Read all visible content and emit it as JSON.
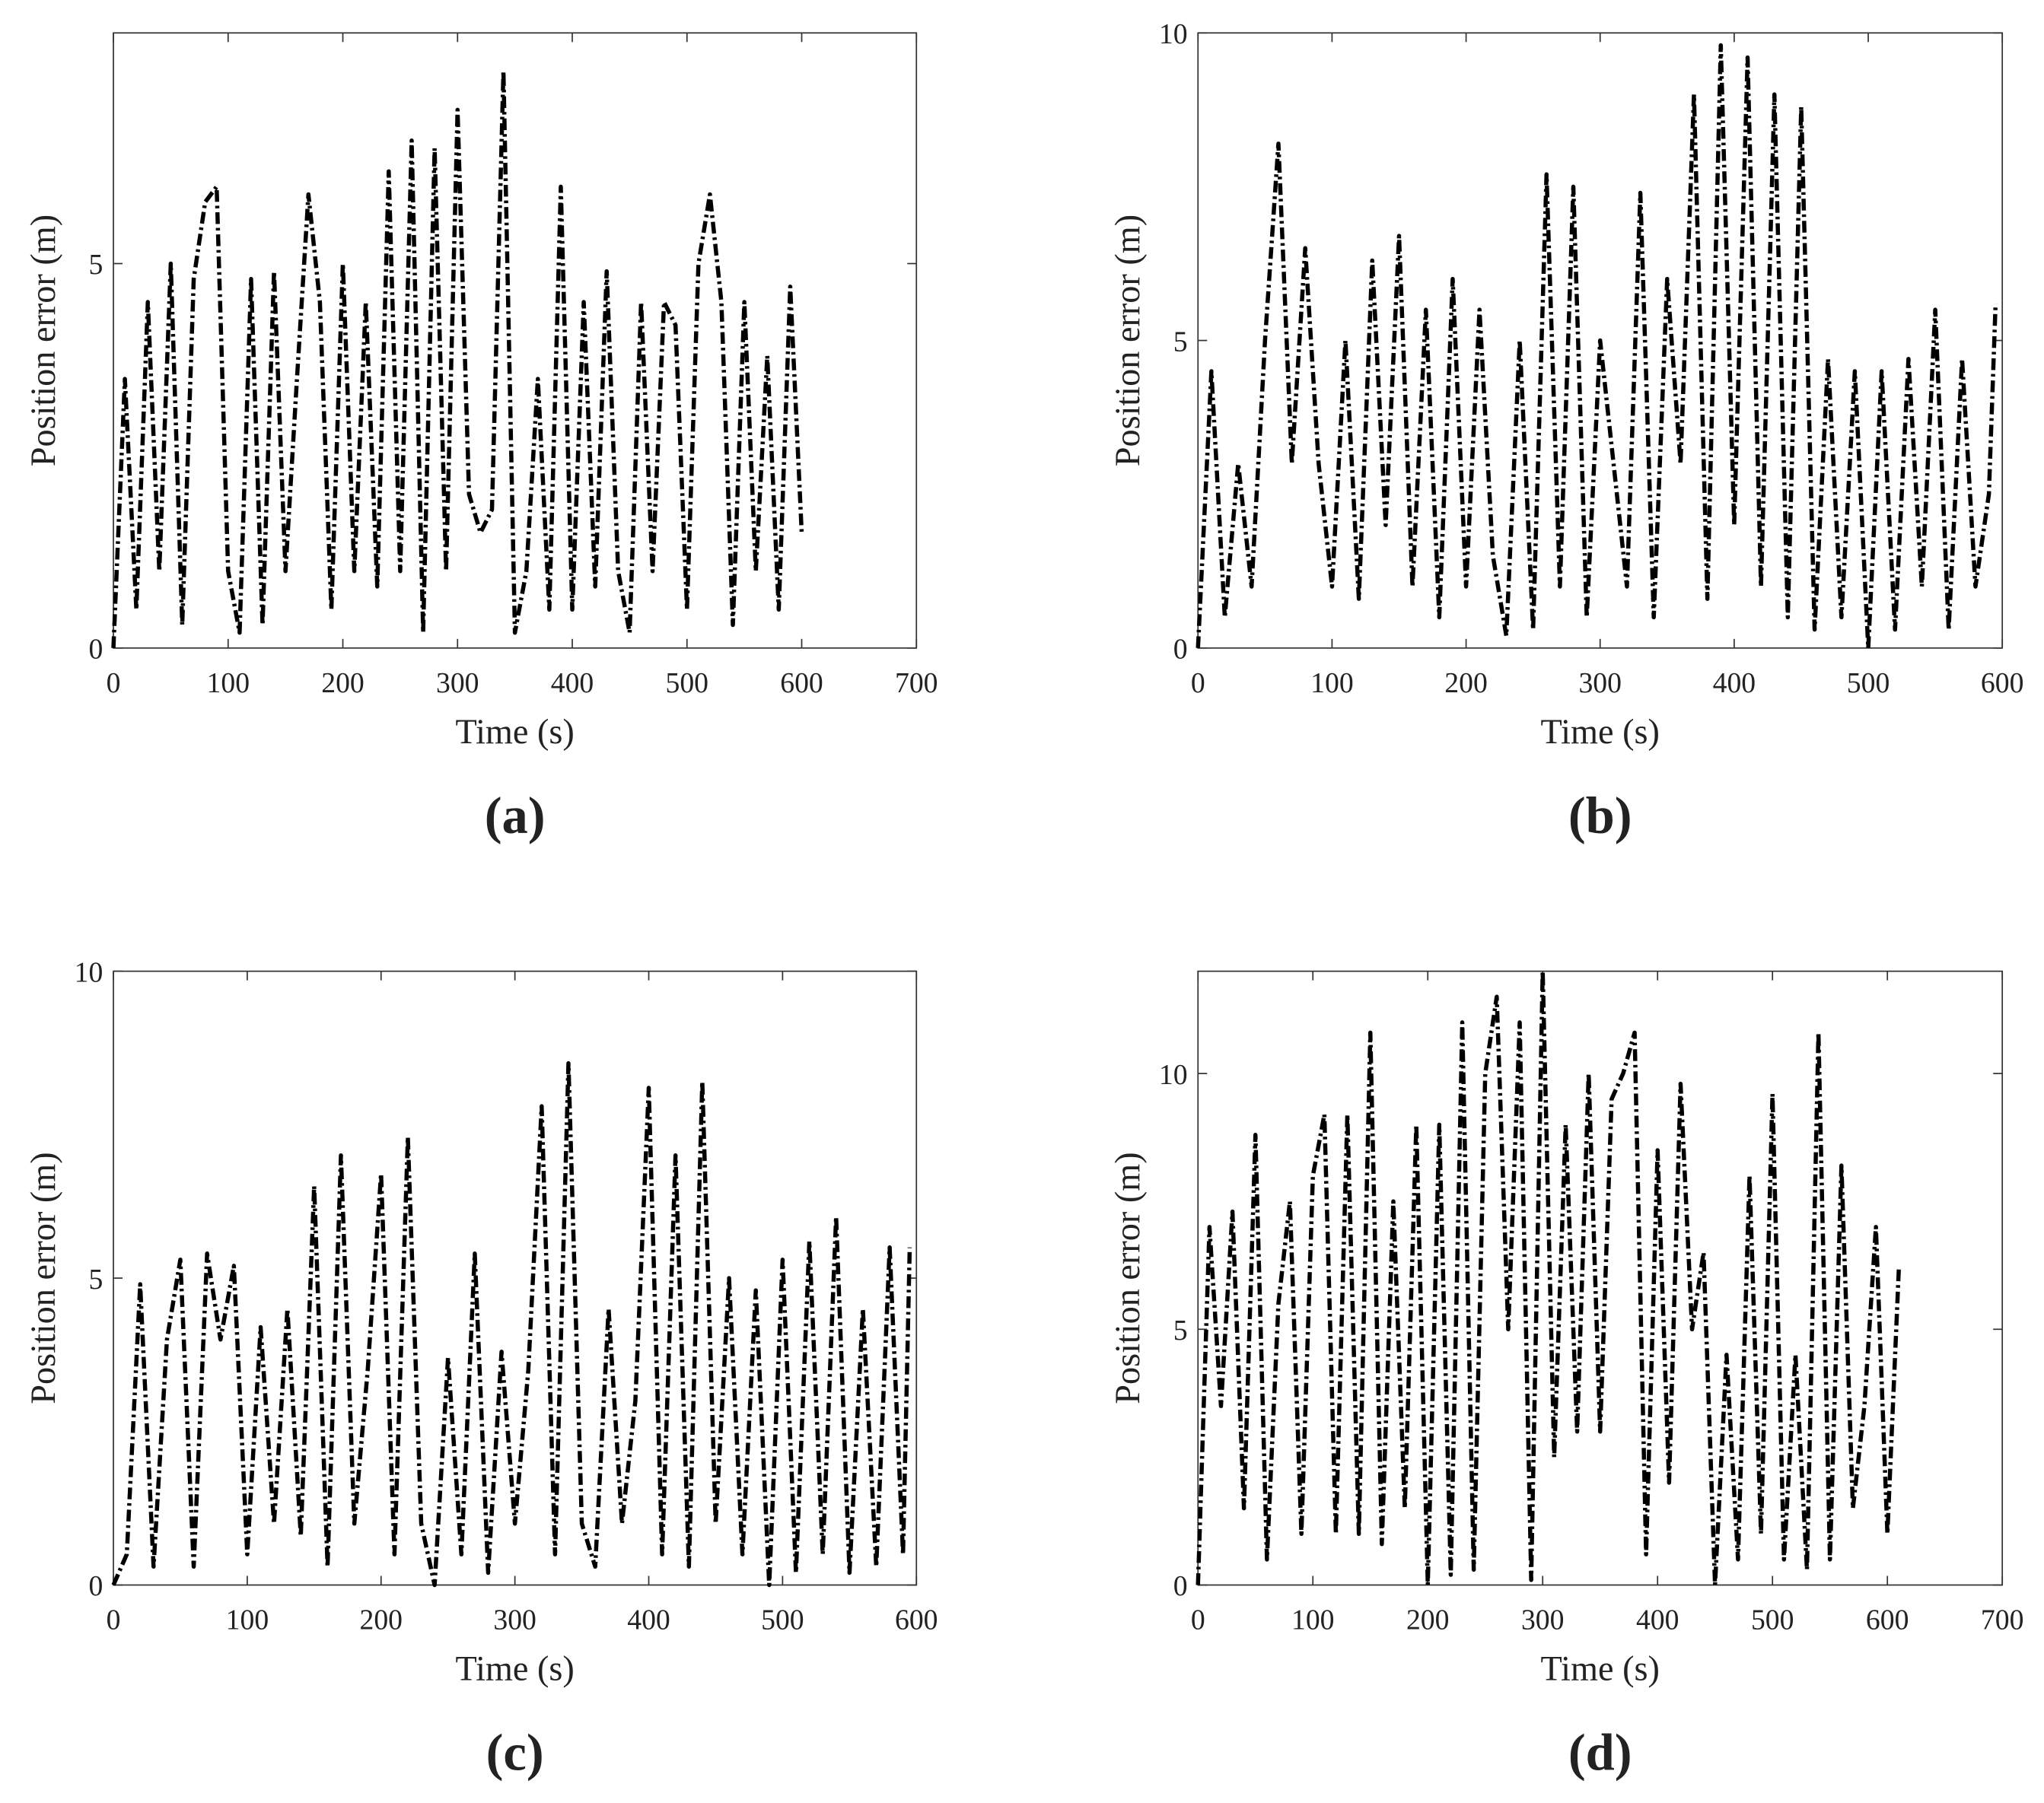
{
  "chart_data": [
    {
      "type": "line",
      "title": "(a)",
      "xlabel": "Time (s)",
      "ylabel": "Position error (m)",
      "xlim": [
        0,
        700
      ],
      "xticks": [
        0,
        100,
        200,
        300,
        400,
        500,
        600,
        700
      ],
      "ylim": [
        0,
        8
      ],
      "yticks": [
        0,
        5
      ],
      "x": [
        0,
        10,
        20,
        30,
        40,
        50,
        60,
        70,
        80,
        90,
        100,
        110,
        120,
        130,
        140,
        150,
        160,
        170,
        180,
        190,
        200,
        210,
        220,
        230,
        240,
        250,
        260,
        270,
        280,
        290,
        300,
        310,
        320,
        330,
        340,
        350,
        360,
        370,
        380,
        390,
        400,
        410,
        420,
        430,
        440,
        450,
        460,
        470,
        480,
        490,
        500,
        510,
        520,
        530,
        540,
        550,
        560,
        570,
        580,
        590,
        600
      ],
      "series": [
        {
          "color": "#000000",
          "values": [
            0,
            3.5,
            0.5,
            4.5,
            1,
            5,
            0.3,
            4.8,
            5.8,
            6,
            1,
            0.2,
            4.8,
            0.3,
            4.9,
            1,
            3.5,
            5.9,
            4.5,
            0.5,
            5,
            1,
            4.5,
            0.8,
            6.2,
            1,
            6.6,
            0.2,
            6.5,
            1,
            7,
            2,
            1.5,
            1.8,
            7.5,
            0.2,
            1,
            3.5,
            0.5,
            6,
            0.5,
            4.5,
            0.8,
            4.9,
            1,
            0.2,
            4.5,
            1,
            4.5,
            4.2,
            0.5,
            5,
            5.9,
            4.5,
            0.3,
            4.5,
            1,
            3.8,
            0.5,
            4.7,
            1.5
          ]
        }
      ]
    },
    {
      "type": "line",
      "title": "(b)",
      "xlabel": "Time (s)",
      "ylabel": "Position error (m)",
      "xlim": [
        0,
        600
      ],
      "xticks": [
        0,
        100,
        200,
        300,
        400,
        500,
        600
      ],
      "ylim": [
        0,
        10
      ],
      "yticks": [
        0,
        5,
        10
      ],
      "x": [
        0,
        10,
        20,
        30,
        40,
        50,
        60,
        70,
        80,
        90,
        100,
        110,
        120,
        130,
        140,
        150,
        160,
        170,
        180,
        190,
        200,
        210,
        220,
        230,
        240,
        250,
        260,
        270,
        280,
        290,
        300,
        310,
        320,
        330,
        340,
        350,
        360,
        370,
        380,
        390,
        400,
        410,
        420,
        430,
        440,
        450,
        460,
        470,
        480,
        490,
        500,
        510,
        520,
        530,
        540,
        550,
        560,
        570,
        580,
        590,
        595
      ],
      "series": [
        {
          "color": "#000000",
          "values": [
            0,
            4.5,
            0.5,
            3,
            1,
            5,
            8.2,
            3,
            6.5,
            3,
            1,
            5,
            0.8,
            6.3,
            2,
            6.7,
            1,
            5.5,
            0.5,
            6,
            1,
            5.5,
            1.5,
            0.2,
            5,
            0.3,
            7.7,
            1,
            7.5,
            0.5,
            5,
            3,
            1,
            7.4,
            0.5,
            6,
            3,
            9,
            0.8,
            9.8,
            2,
            9.6,
            1,
            9,
            0.5,
            8.8,
            0.3,
            4.7,
            0.5,
            4.5,
            0,
            4.5,
            0.3,
            4.7,
            1,
            5.5,
            0.3,
            4.7,
            1,
            2.5,
            5.6
          ]
        }
      ]
    },
    {
      "type": "line",
      "title": "(c)",
      "xlabel": "Time (s)",
      "ylabel": "Position error (m)",
      "xlim": [
        0,
        600
      ],
      "xticks": [
        0,
        100,
        200,
        300,
        400,
        500,
        600
      ],
      "ylim": [
        0,
        10
      ],
      "yticks": [
        0,
        5,
        10
      ],
      "x": [
        0,
        10,
        20,
        30,
        40,
        50,
        60,
        70,
        80,
        90,
        100,
        110,
        120,
        130,
        140,
        150,
        160,
        170,
        180,
        190,
        200,
        210,
        220,
        230,
        240,
        250,
        260,
        270,
        280,
        290,
        300,
        310,
        320,
        330,
        340,
        350,
        360,
        370,
        380,
        390,
        400,
        410,
        420,
        430,
        440,
        450,
        460,
        470,
        480,
        490,
        500,
        510,
        520,
        530,
        540,
        550,
        560,
        570,
        580,
        590,
        595
      ],
      "series": [
        {
          "color": "#000000",
          "values": [
            0,
            0.5,
            4.9,
            0.3,
            4,
            5.3,
            0.3,
            5.4,
            4,
            5.2,
            0.5,
            4.2,
            1,
            4.5,
            0.8,
            6.5,
            0.3,
            7,
            1,
            3.5,
            6.7,
            0.5,
            7.3,
            1,
            0,
            3.7,
            0.5,
            5.4,
            0.2,
            3.8,
            1,
            3.5,
            7.8,
            0.5,
            8.5,
            1,
            0.3,
            4.5,
            1,
            3,
            8.1,
            0.5,
            7,
            0.3,
            8.2,
            1,
            5,
            0.5,
            4.8,
            0,
            5.3,
            0.2,
            5.6,
            0.5,
            6,
            0.2,
            4.5,
            0.3,
            5.5,
            0.5,
            5.5
          ]
        }
      ]
    },
    {
      "type": "line",
      "title": "(d)",
      "xlabel": "Time (s)",
      "ylabel": "Position error (m)",
      "xlim": [
        0,
        700
      ],
      "xticks": [
        0,
        100,
        200,
        300,
        400,
        500,
        600,
        700
      ],
      "ylim": [
        0,
        12
      ],
      "yticks": [
        0,
        5,
        10
      ],
      "x": [
        0,
        10,
        20,
        30,
        40,
        50,
        60,
        70,
        80,
        90,
        100,
        110,
        120,
        130,
        140,
        150,
        160,
        170,
        180,
        190,
        200,
        210,
        220,
        230,
        240,
        250,
        260,
        270,
        280,
        290,
        300,
        310,
        320,
        330,
        340,
        350,
        360,
        370,
        380,
        390,
        400,
        410,
        420,
        430,
        440,
        450,
        460,
        470,
        480,
        490,
        500,
        510,
        520,
        530,
        540,
        550,
        560,
        570,
        580,
        590,
        600,
        610
      ],
      "series": [
        {
          "color": "#000000",
          "values": [
            0,
            7,
            3.5,
            7.3,
            1.5,
            8.8,
            0.5,
            5.5,
            7.5,
            1,
            8,
            9.2,
            1,
            9.2,
            1,
            10.8,
            0.8,
            7.5,
            1.5,
            9,
            0,
            9,
            0.2,
            11,
            0.3,
            10,
            11.5,
            5,
            11,
            0.1,
            12,
            2.5,
            9,
            3,
            10,
            3,
            9.5,
            10,
            10.8,
            0.6,
            8.5,
            2,
            9.8,
            5,
            6.5,
            0,
            4.5,
            0.5,
            8,
            1,
            9.6,
            0.5,
            4.5,
            0.3,
            10.8,
            0.5,
            8.2,
            1.5,
            3.5,
            7,
            1,
            6.2
          ]
        }
      ]
    }
  ]
}
